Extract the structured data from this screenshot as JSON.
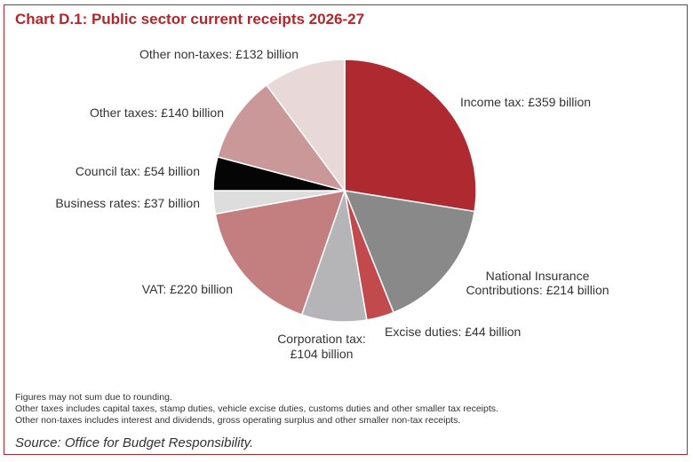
{
  "chart_data": {
    "type": "pie",
    "title": "Chart D.1: Public sector current receipts 2026-27",
    "unit": "£ billion",
    "slices": [
      {
        "name": "Income tax",
        "value": 359,
        "label": "Income tax: £359 billion",
        "color": "#ae2a30"
      },
      {
        "name": "National Insurance Contributions",
        "value": 214,
        "label_lines": [
          "National Insurance",
          "Contributions: £214 billion"
        ],
        "color": "#898989"
      },
      {
        "name": "Excise duties",
        "value": 44,
        "label": "Excise duties: £44 billion",
        "color": "#c24a4c"
      },
      {
        "name": "Corporation tax",
        "value": 104,
        "label_lines": [
          "Corporation tax:",
          "£104 billion"
        ],
        "color": "#b5b5b7"
      },
      {
        "name": "VAT",
        "value": 220,
        "label": "VAT: £220 billion",
        "color": "#c37f80"
      },
      {
        "name": "Business rates",
        "value": 37,
        "label": "Business rates: £37 billion",
        "color": "#dddddd"
      },
      {
        "name": "Council tax",
        "value": 54,
        "label": "Council tax: £54 billion",
        "color": "#050505"
      },
      {
        "name": "Other taxes",
        "value": 140,
        "label": "Other taxes: £140 billion",
        "color": "#ca9898"
      },
      {
        "name": "Other non-taxes",
        "value": 132,
        "label": "Other non-taxes: £132 billion",
        "color": "#e8d8d8"
      }
    ]
  },
  "notes": [
    "Figures may not sum due to rounding.",
    "Other taxes includes capital taxes, stamp duties, vehicle excise duties, customs duties and other smaller tax receipts.",
    "Other non-taxes includes interest and dividends, gross operating surplus and other smaller non-tax receipts."
  ],
  "source": "Source: Office for Budget Responsibility."
}
